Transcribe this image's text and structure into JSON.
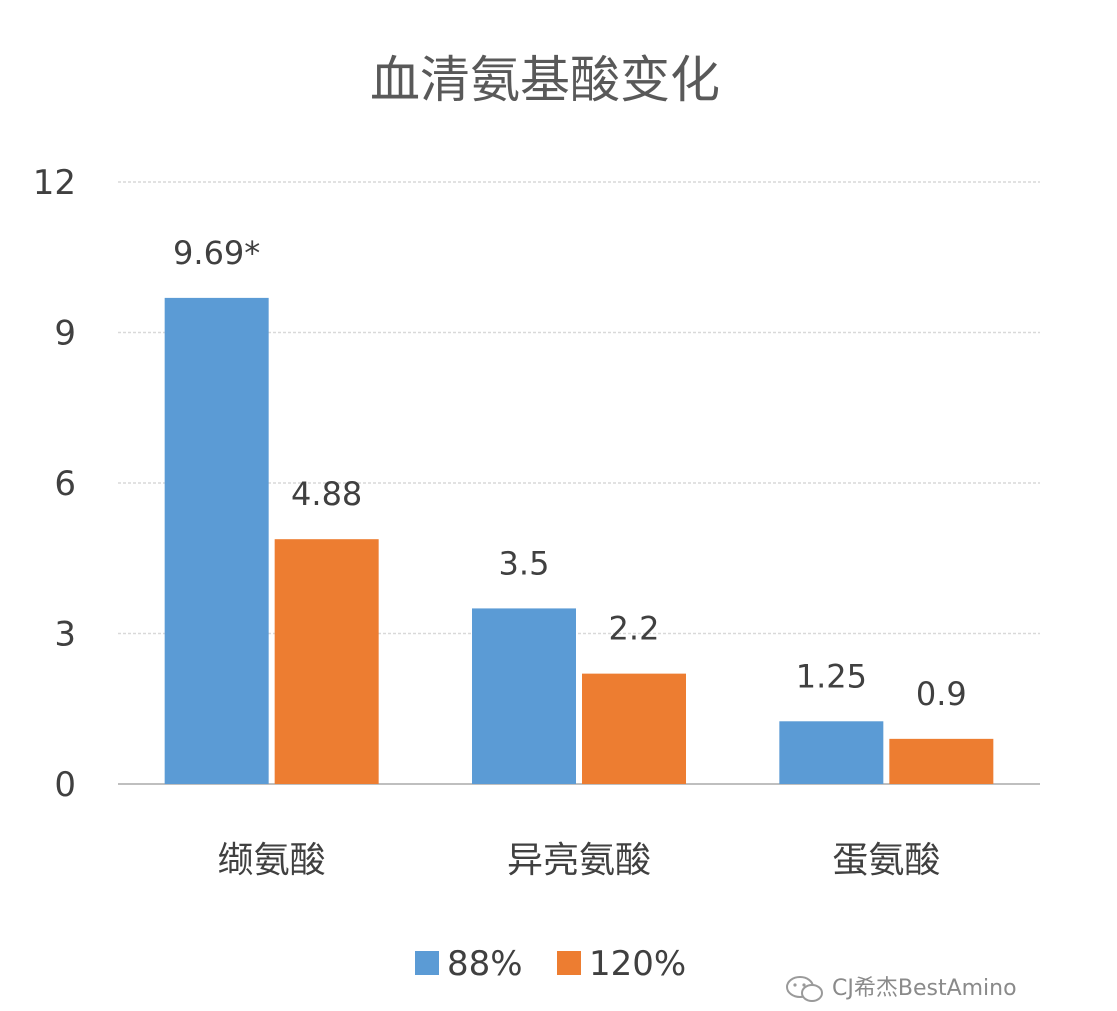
{
  "chart_data": {
    "type": "bar",
    "title": "血清氨基酸变化",
    "xlabel": "",
    "ylabel": "",
    "categories": [
      "缬氨酸",
      "异亮氨酸",
      "蛋氨酸"
    ],
    "series": [
      {
        "name": "88%",
        "color": "#5b9bd5",
        "values": [
          9.69,
          3.5,
          1.25
        ],
        "labels": [
          "9.69*",
          "3.5",
          "1.25"
        ]
      },
      {
        "name": "120%",
        "color": "#ed7d31",
        "values": [
          4.88,
          2.2,
          0.9
        ],
        "labels": [
          "4.88",
          "2.2",
          "0.9"
        ]
      }
    ],
    "ylim": [
      0,
      12
    ],
    "yticks": [
      0,
      3,
      6,
      9,
      12
    ],
    "grid": true,
    "legend_position": "bottom"
  },
  "watermark": {
    "text": "CJ希杰BestAmino",
    "icon": "wechat-icon"
  }
}
